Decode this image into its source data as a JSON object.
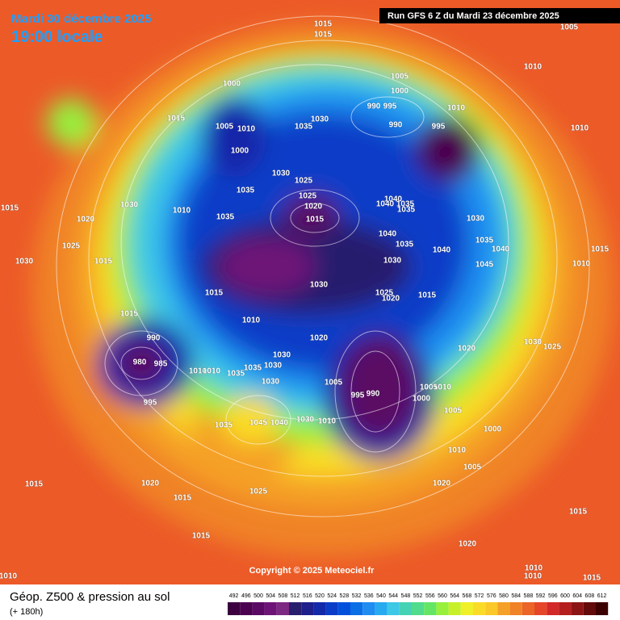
{
  "map": {
    "date_title": "Mardi 30 décembre 2025",
    "time_title": "19:00 locale",
    "run_info": "Run GFS 6 Z du Mardi 23 décembre 2025",
    "copyright": "Copyright © 2025 Meteociel.fr",
    "pressure_labels": [
      "1015",
      "1015",
      "1005",
      "1010",
      "1005",
      "1000",
      "1000",
      "990",
      "995",
      "1010",
      "1015",
      "1030",
      "990",
      "995",
      "1005",
      "1010",
      "1035",
      "1000",
      "1010",
      "1030",
      "1025",
      "1035",
      "1025",
      "1040",
      "1030",
      "1020",
      "1040",
      "1035",
      "1035",
      "1010",
      "1015",
      "1015",
      "1035",
      "1030",
      "1020",
      "1040",
      "1035",
      "1035",
      "1040",
      "1040",
      "1025",
      "1015",
      "1030",
      "1015",
      "1030",
      "1045",
      "1010",
      "1030",
      "1025",
      "1020",
      "1015",
      "1015",
      "1015",
      "1010",
      "1020",
      "990",
      "1030",
      "1025",
      "1020",
      "980",
      "985",
      "1030",
      "1030",
      "1010",
      "1010",
      "1035",
      "1035",
      "1030",
      "1005",
      "1010",
      "1005",
      "995",
      "990",
      "1000",
      "995",
      "1005",
      "1035",
      "1045",
      "1040",
      "1030",
      "1010",
      "1000",
      "1010",
      "1005",
      "1015",
      "1020",
      "1020",
      "1025",
      "1015",
      "1015",
      "1015",
      "1020",
      "1010",
      "1010",
      "1015",
      "1010"
    ]
  },
  "legend": {
    "title": "Géop. Z500 & pression au sol",
    "subtitle": "(+ 180h)",
    "ticks": [
      492,
      496,
      500,
      504,
      508,
      512,
      516,
      520,
      524,
      528,
      532,
      536,
      540,
      544,
      548,
      552,
      556,
      560,
      564,
      568,
      572,
      576,
      580,
      584,
      588,
      592,
      596,
      600,
      604,
      608,
      612
    ],
    "colors": [
      "#3c0040",
      "#4b0050",
      "#5a0a64",
      "#6e1478",
      "#7d2882",
      "#281e6e",
      "#1e1e8c",
      "#1428aa",
      "#0a3cc8",
      "#0050dc",
      "#0a6ee6",
      "#1e8cf0",
      "#28aaf0",
      "#3cc8e6",
      "#46d2b4",
      "#50dc8c",
      "#64e664",
      "#96f03c",
      "#c8f028",
      "#f0f028",
      "#fadc28",
      "#fac828",
      "#f5a028",
      "#f08228",
      "#eb6428",
      "#e64628",
      "#d22828",
      "#b41e1e",
      "#8c1414",
      "#640a0a",
      "#3c0000"
    ]
  }
}
